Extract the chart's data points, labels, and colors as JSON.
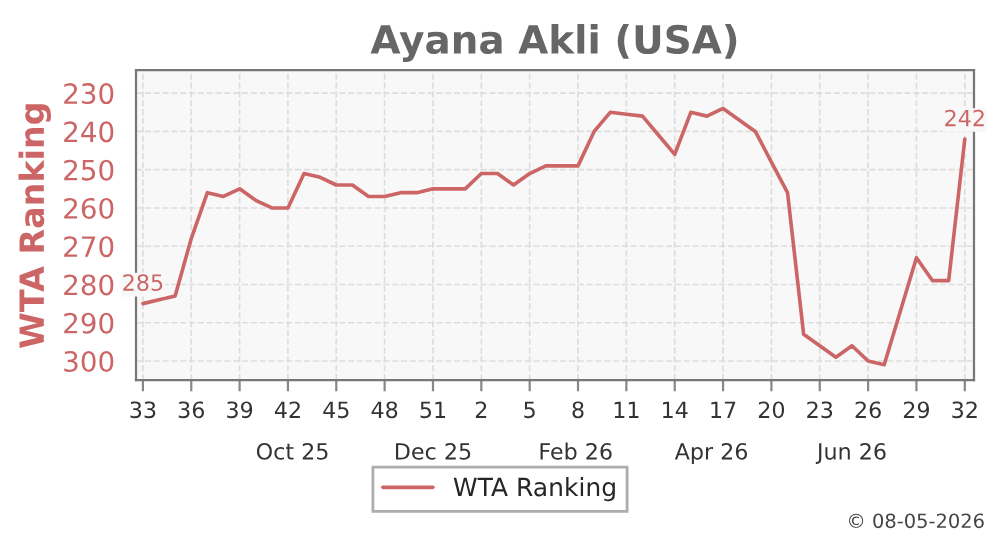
{
  "chart_data": {
    "type": "line",
    "title": "Ayana Akli (USA)",
    "ylabel": "WTA Ranking",
    "x": [
      "2025-08-11",
      "2025-08-18",
      "2025-08-25",
      "2025-09-01",
      "2025-09-08",
      "2025-09-15",
      "2025-09-22",
      "2025-09-29",
      "2025-10-06",
      "2025-10-13",
      "2025-10-20",
      "2025-10-27",
      "2025-11-03",
      "2025-11-10",
      "2025-11-17",
      "2025-11-24",
      "2025-12-01",
      "2025-12-08",
      "2025-12-15",
      "2025-12-22",
      "2025-12-29",
      "2026-01-05",
      "2026-01-12",
      "2026-01-19",
      "2026-01-26",
      "2026-02-02",
      "2026-02-09",
      "2026-02-16",
      "2026-02-23",
      "2026-03-02",
      "2026-03-09",
      "2026-03-16",
      "2026-03-23",
      "2026-03-30",
      "2026-04-06",
      "2026-04-13",
      "2026-04-20",
      "2026-04-27",
      "2026-05-04",
      "2026-05-11",
      "2026-05-18",
      "2026-05-25",
      "2026-06-01",
      "2026-06-08",
      "2026-06-15",
      "2026-06-22",
      "2026-06-29",
      "2026-07-06",
      "2026-07-13",
      "2026-07-20",
      "2026-07-27",
      "2026-08-03"
    ],
    "series": [
      {
        "name": "WTA Ranking",
        "color": "#cc6666",
        "values": [
          285,
          284,
          283,
          268,
          256,
          257,
          255,
          258,
          260,
          260,
          251,
          252,
          254,
          254,
          257,
          257,
          256,
          256,
          255,
          255,
          255,
          251,
          251,
          254,
          251,
          249,
          249,
          249,
          240,
          235,
          235.5,
          236,
          241,
          246,
          235,
          236,
          234,
          237,
          240,
          248,
          256,
          293,
          296,
          299,
          296,
          300,
          301,
          287,
          273,
          279,
          279,
          242
        ],
        "value_labels": [
          "285",
          null,
          null,
          null,
          null,
          null,
          null,
          null,
          null,
          null,
          null,
          null,
          null,
          null,
          null,
          null,
          null,
          null,
          null,
          null,
          null,
          null,
          null,
          null,
          null,
          null,
          null,
          null,
          null,
          null,
          null,
          null,
          null,
          null,
          null,
          null,
          null,
          null,
          null,
          null,
          null,
          null,
          null,
          null,
          null,
          null,
          null,
          null,
          null,
          null,
          null,
          "242"
        ]
      }
    ],
    "ylim": [
      305,
      224
    ],
    "yticks": [
      230,
      240,
      250,
      260,
      270,
      280,
      290,
      300
    ],
    "xlim": [
      "2025-08-08",
      "2026-08-07"
    ],
    "xticks": [
      {
        "value": "2025-08-11",
        "label": "33"
      },
      {
        "value": "2025-09-01",
        "label": "36"
      },
      {
        "value": "2025-09-22",
        "label": "39"
      },
      {
        "value": "2025-10-13",
        "label": "42"
      },
      {
        "value": "2025-11-03",
        "label": "45"
      },
      {
        "value": "2025-11-24",
        "label": "48"
      },
      {
        "value": "2025-12-15",
        "label": "51"
      },
      {
        "value": "2026-01-05",
        "label": "2"
      },
      {
        "value": "2026-01-26",
        "label": "5"
      },
      {
        "value": "2026-02-16",
        "label": "8"
      },
      {
        "value": "2026-03-09",
        "label": "11"
      },
      {
        "value": "2026-03-30",
        "label": "14"
      },
      {
        "value": "2026-04-20",
        "label": "17"
      },
      {
        "value": "2026-05-11",
        "label": "20"
      },
      {
        "value": "2026-06-01",
        "label": "23"
      },
      {
        "value": "2026-06-22",
        "label": "26"
      },
      {
        "value": "2026-07-13",
        "label": "29"
      },
      {
        "value": "2026-08-03",
        "label": "32"
      }
    ],
    "x2lim": [
      "2025-08-08",
      "2026-08-07"
    ],
    "x2ticks": [
      {
        "value": "2025-10-15",
        "label": "Oct 25"
      },
      {
        "value": "2025-12-15",
        "label": "Dec 25"
      },
      {
        "value": "2026-02-15",
        "label": "Feb 26"
      },
      {
        "value": "2026-04-15",
        "label": "Apr 26"
      },
      {
        "value": "2026-06-15",
        "label": "Jun 26"
      }
    ],
    "grid": true,
    "legend": "bottom",
    "marker": "none",
    "line_style": "solid",
    "annotations": [
      "© 08-05-2026"
    ]
  }
}
